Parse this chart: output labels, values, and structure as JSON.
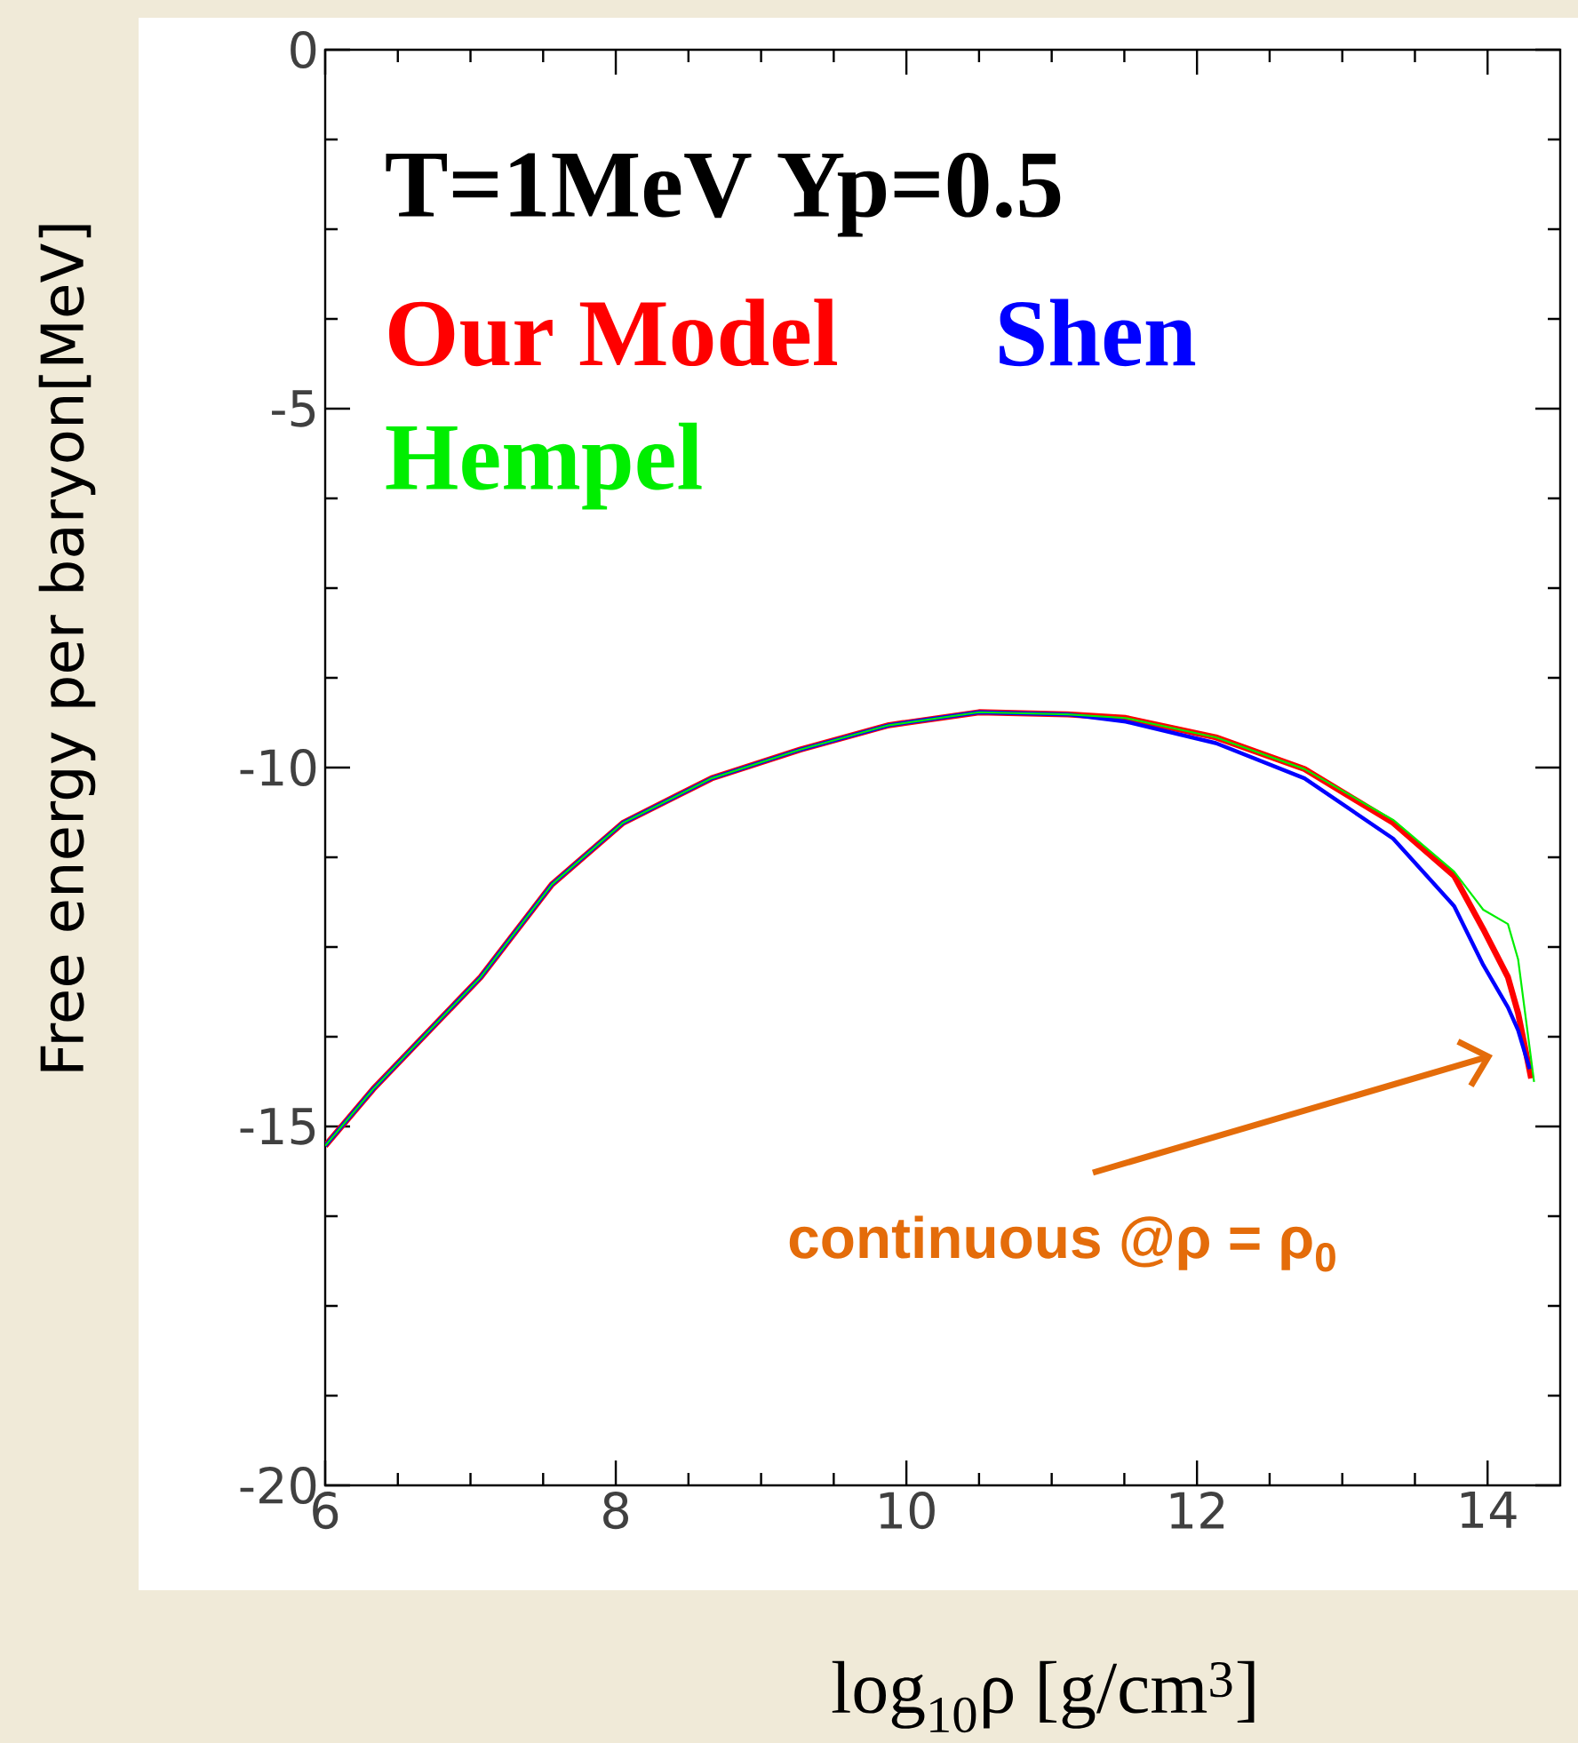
{
  "chart_data": {
    "type": "line",
    "title": "T=1MeV    Yp=0.5",
    "xlabel": "log$_{10}$ρ [g/cm$^{3}$]",
    "ylabel": "Free energy per baryon[MeV]",
    "xlim": [
      6,
      14.5
    ],
    "ylim": [
      -20,
      0
    ],
    "xticks": [
      6,
      8,
      10,
      12,
      14
    ],
    "yticks": [
      0,
      -5,
      -10,
      -15,
      -20
    ],
    "grid": false,
    "marker": "none",
    "line_style": "solid",
    "annotations": [
      "continuous @ρ = ρ$_{0}$"
    ],
    "series": [
      {
        "name": "Our Model",
        "color": "#ff0000",
        "x": [
          6,
          6.33,
          7.07,
          7.56,
          8.05,
          8.66,
          9.27,
          9.88,
          10.5,
          11.11,
          11.51,
          12.13,
          12.74,
          13.35,
          13.77,
          13.97,
          14.14,
          14.21,
          14.3
        ],
        "values": [
          -15.27,
          -14.48,
          -12.92,
          -11.63,
          -10.77,
          -10.15,
          -9.75,
          -9.41,
          -9.23,
          -9.26,
          -9.31,
          -9.58,
          -10.02,
          -10.77,
          -11.51,
          -12.25,
          -12.92,
          -13.42,
          -14.33
        ]
      },
      {
        "name": "Shen",
        "color": "#0000ff",
        "x": [
          6,
          6.33,
          7.07,
          7.56,
          8.05,
          8.66,
          9.27,
          9.88,
          10.5,
          11.11,
          11.51,
          12.13,
          12.74,
          13.35,
          13.77,
          13.97,
          14.14,
          14.21,
          14.29
        ],
        "values": [
          -15.27,
          -14.48,
          -12.92,
          -11.63,
          -10.77,
          -10.15,
          -9.75,
          -9.41,
          -9.23,
          -9.26,
          -9.36,
          -9.66,
          -10.15,
          -10.99,
          -11.93,
          -12.75,
          -13.34,
          -13.66,
          -14.2
        ]
      },
      {
        "name": "Hempel",
        "color": "#00ee00",
        "x": [
          6,
          6.33,
          7.07,
          7.56,
          8.05,
          8.66,
          9.27,
          9.88,
          10.5,
          11.11,
          11.51,
          12.13,
          12.74,
          13.35,
          13.77,
          13.97,
          14.14,
          14.21,
          14.32
        ],
        "values": [
          -15.27,
          -14.48,
          -12.92,
          -11.63,
          -10.77,
          -10.15,
          -9.75,
          -9.41,
          -9.23,
          -9.26,
          -9.31,
          -9.58,
          -10.02,
          -10.73,
          -11.45,
          -11.98,
          -12.18,
          -12.67,
          -14.38
        ]
      }
    ]
  }
}
